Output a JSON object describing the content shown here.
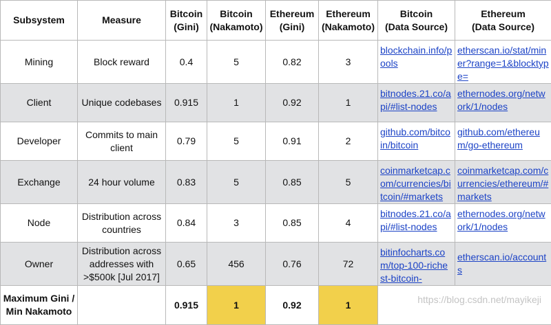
{
  "headers": [
    "Subsystem",
    "Measure",
    "Bitcoin\n(Gini)",
    "Bitcoin\n(Nakamoto)",
    "Ethereum\n(Gini)",
    "Ethereum\n(Nakamoto)",
    "Bitcoin\n(Data Source)",
    "Ethereum\n(Data Source)"
  ],
  "rows": [
    {
      "subsystem": "Mining",
      "measure": "Block reward",
      "btc_gini": "0.4",
      "btc_nak": "5",
      "eth_gini": "0.82",
      "eth_nak": "3",
      "btc_src": "blockchain.info/pools",
      "eth_src": "etherscan.io/stat/miner?range=1&blocktype="
    },
    {
      "subsystem": "Client",
      "measure": "Unique codebases",
      "btc_gini": "0.915",
      "btc_nak": "1",
      "eth_gini": "0.92",
      "eth_nak": "1",
      "btc_src": "bitnodes.21.co/api/#list-nodes",
      "eth_src": "ethernodes.org/network/1/nodes"
    },
    {
      "subsystem": "Developer",
      "measure": "Commits to main client",
      "btc_gini": "0.79",
      "btc_nak": "5",
      "eth_gini": "0.91",
      "eth_nak": "2",
      "btc_src": "github.com/bitcoin/bitcoin",
      "eth_src": "github.com/ethereum/go-ethereum"
    },
    {
      "subsystem": "Exchange",
      "measure": "24 hour volume",
      "btc_gini": "0.83",
      "btc_nak": "5",
      "eth_gini": "0.85",
      "eth_nak": "5",
      "btc_src": "coinmarketcap.com/currencies/bitcoin/#markets",
      "eth_src": "coinmarketcap.com/currencies/ethereum/#markets"
    },
    {
      "subsystem": "Node",
      "measure": "Distribution across countries",
      "btc_gini": "0.84",
      "btc_nak": "3",
      "eth_gini": "0.85",
      "eth_nak": "4",
      "btc_src": "bitnodes.21.co/api/#list-nodes",
      "eth_src": "ethernodes.org/network/1/nodes"
    },
    {
      "subsystem": "Owner",
      "measure": "Distribution across addresses with >$500k [Jul 2017]",
      "btc_gini": "0.65",
      "btc_nak": "456",
      "eth_gini": "0.76",
      "eth_nak": "72",
      "btc_src": "bitinfocharts.com/top-100-richest-bitcoin-",
      "eth_src": "etherscan.io/accounts"
    }
  ],
  "footer": {
    "label": "Maximum Gini / Min Nakamoto",
    "btc_gini": "0.915",
    "btc_nak": "1",
    "eth_gini": "0.92",
    "eth_nak": "1"
  },
  "watermark": "https://blog.csdn.net/mayikeji",
  "colors": {
    "highlight": "#f2d04b",
    "stripe": "#e1e2e4",
    "link": "#1c43c6"
  }
}
